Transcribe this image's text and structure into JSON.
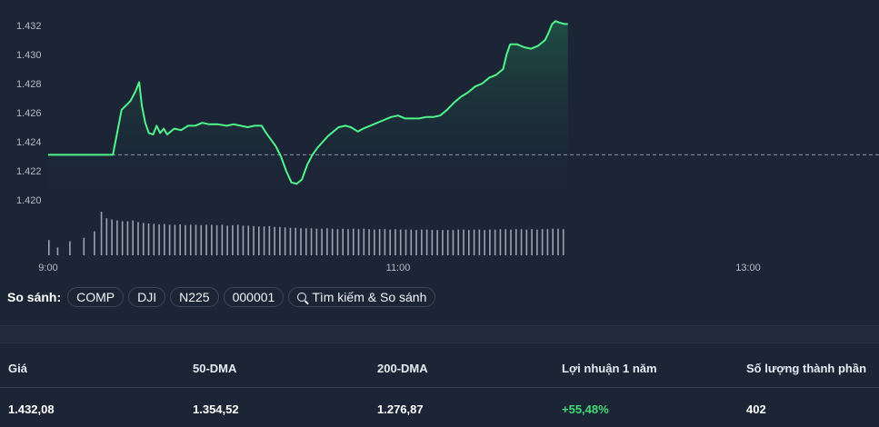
{
  "chart_data": {
    "type": "area",
    "y_ticks": [
      "1.432",
      "1.430",
      "1.428",
      "1.426",
      "1.424",
      "1.422",
      "1.420"
    ],
    "x_ticks": [
      "9:00",
      "11:00",
      "13:00"
    ],
    "ylim": [
      1.4195,
      1.4328
    ],
    "x_range_hours": [
      9,
      13
    ],
    "previous_close": 1.4231,
    "grid": false,
    "colors": {
      "line": "#4ff58b",
      "reference": "#8a93a3",
      "volume": "#9aa3b0",
      "area_top": "#1f5c48"
    },
    "price_series": [
      [
        9.0,
        1.4231
      ],
      [
        9.37,
        1.4231
      ],
      [
        9.42,
        1.4262
      ],
      [
        9.47,
        1.4268
      ],
      [
        9.5,
        1.4275
      ],
      [
        9.52,
        1.4281
      ],
      [
        9.535,
        1.4265
      ],
      [
        9.555,
        1.4253
      ],
      [
        9.575,
        1.4246
      ],
      [
        9.6,
        1.4245
      ],
      [
        9.62,
        1.4251
      ],
      [
        9.64,
        1.4246
      ],
      [
        9.66,
        1.4249
      ],
      [
        9.68,
        1.4245
      ],
      [
        9.7,
        1.4247
      ],
      [
        9.72,
        1.4249
      ],
      [
        9.76,
        1.4248
      ],
      [
        9.8,
        1.4251
      ],
      [
        9.84,
        1.4251
      ],
      [
        9.88,
        1.4253
      ],
      [
        9.92,
        1.4252
      ],
      [
        9.97,
        1.4252
      ],
      [
        10.02,
        1.4251
      ],
      [
        10.06,
        1.4252
      ],
      [
        10.1,
        1.4251
      ],
      [
        10.14,
        1.425
      ],
      [
        10.18,
        1.4251
      ],
      [
        10.22,
        1.4251
      ],
      [
        10.24,
        1.4247
      ],
      [
        10.27,
        1.4242
      ],
      [
        10.3,
        1.4237
      ],
      [
        10.33,
        1.423
      ],
      [
        10.36,
        1.422
      ],
      [
        10.39,
        1.4212
      ],
      [
        10.42,
        1.4211
      ],
      [
        10.45,
        1.4214
      ],
      [
        10.48,
        1.4224
      ],
      [
        10.51,
        1.4231
      ],
      [
        10.54,
        1.4236
      ],
      [
        10.57,
        1.424
      ],
      [
        10.6,
        1.4244
      ],
      [
        10.63,
        1.4247
      ],
      [
        10.66,
        1.425
      ],
      [
        10.7,
        1.4251
      ],
      [
        10.73,
        1.425
      ],
      [
        10.77,
        1.4247
      ],
      [
        10.8,
        1.4249
      ],
      [
        10.84,
        1.4251
      ],
      [
        10.88,
        1.4253
      ],
      [
        10.92,
        1.4255
      ],
      [
        10.96,
        1.4257
      ],
      [
        11.0,
        1.4258
      ],
      [
        11.04,
        1.4256
      ],
      [
        11.08,
        1.4256
      ],
      [
        11.12,
        1.4256
      ],
      [
        11.16,
        1.4257
      ],
      [
        11.2,
        1.4257
      ],
      [
        11.24,
        1.4258
      ],
      [
        11.28,
        1.4262
      ],
      [
        11.32,
        1.4267
      ],
      [
        11.36,
        1.4271
      ],
      [
        11.4,
        1.4274
      ],
      [
        11.44,
        1.4278
      ],
      [
        11.48,
        1.428
      ],
      [
        11.52,
        1.4284
      ],
      [
        11.56,
        1.4286
      ],
      [
        11.6,
        1.429
      ],
      [
        11.62,
        1.43
      ],
      [
        11.64,
        1.4307
      ],
      [
        11.68,
        1.4307
      ],
      [
        11.72,
        1.4305
      ],
      [
        11.76,
        1.4304
      ],
      [
        11.8,
        1.4306
      ],
      [
        11.84,
        1.431
      ],
      [
        11.86,
        1.4315
      ],
      [
        11.88,
        1.4321
      ],
      [
        11.9,
        1.4323
      ],
      [
        11.92,
        1.4322
      ],
      [
        11.95,
        1.4321
      ],
      [
        11.97,
        1.4321
      ]
    ],
    "volume_bars": [
      [
        9.0,
        0.35
      ],
      [
        9.05,
        0.18
      ],
      [
        9.12,
        0.32
      ],
      [
        9.2,
        0.4
      ],
      [
        9.26,
        0.55
      ],
      [
        9.3,
        1.0
      ],
      [
        9.33,
        0.85
      ],
      [
        9.36,
        0.82
      ],
      [
        9.39,
        0.8
      ],
      [
        9.42,
        0.78
      ],
      [
        9.45,
        0.78
      ],
      [
        9.48,
        0.8
      ],
      [
        9.51,
        0.76
      ],
      [
        9.54,
        0.74
      ],
      [
        9.57,
        0.73
      ],
      [
        9.6,
        0.72
      ],
      [
        9.63,
        0.71
      ],
      [
        9.66,
        0.72
      ],
      [
        9.69,
        0.7
      ],
      [
        9.72,
        0.7
      ],
      [
        9.75,
        0.71
      ],
      [
        9.78,
        0.69
      ],
      [
        9.81,
        0.7
      ],
      [
        9.84,
        0.7
      ],
      [
        9.87,
        0.69
      ],
      [
        9.9,
        0.7
      ],
      [
        9.93,
        0.7
      ],
      [
        9.96,
        0.69
      ],
      [
        9.99,
        0.7
      ],
      [
        10.02,
        0.68
      ],
      [
        10.05,
        0.69
      ],
      [
        10.08,
        0.7
      ],
      [
        10.11,
        0.68
      ],
      [
        10.14,
        0.68
      ],
      [
        10.17,
        0.67
      ],
      [
        10.2,
        0.66
      ],
      [
        10.23,
        0.66
      ],
      [
        10.26,
        0.67
      ],
      [
        10.29,
        0.65
      ],
      [
        10.32,
        0.65
      ],
      [
        10.35,
        0.64
      ],
      [
        10.38,
        0.63
      ],
      [
        10.41,
        0.63
      ],
      [
        10.44,
        0.62
      ],
      [
        10.47,
        0.62
      ],
      [
        10.5,
        0.62
      ],
      [
        10.53,
        0.61
      ],
      [
        10.56,
        0.61
      ],
      [
        10.59,
        0.62
      ],
      [
        10.62,
        0.61
      ],
      [
        10.65,
        0.6
      ],
      [
        10.68,
        0.61
      ],
      [
        10.71,
        0.6
      ],
      [
        10.74,
        0.61
      ],
      [
        10.77,
        0.6
      ],
      [
        10.8,
        0.61
      ],
      [
        10.83,
        0.6
      ],
      [
        10.86,
        0.59
      ],
      [
        10.89,
        0.6
      ],
      [
        10.92,
        0.6
      ],
      [
        10.95,
        0.59
      ],
      [
        10.98,
        0.6
      ],
      [
        11.01,
        0.59
      ],
      [
        11.04,
        0.59
      ],
      [
        11.07,
        0.59
      ],
      [
        11.1,
        0.58
      ],
      [
        11.13,
        0.59
      ],
      [
        11.16,
        0.59
      ],
      [
        11.19,
        0.58
      ],
      [
        11.22,
        0.58
      ],
      [
        11.25,
        0.58
      ],
      [
        11.28,
        0.58
      ],
      [
        11.31,
        0.58
      ],
      [
        11.34,
        0.59
      ],
      [
        11.37,
        0.59
      ],
      [
        11.4,
        0.58
      ],
      [
        11.43,
        0.59
      ],
      [
        11.46,
        0.59
      ],
      [
        11.49,
        0.58
      ],
      [
        11.52,
        0.59
      ],
      [
        11.55,
        0.59
      ],
      [
        11.58,
        0.6
      ],
      [
        11.61,
        0.6
      ],
      [
        11.64,
        0.59
      ],
      [
        11.67,
        0.6
      ],
      [
        11.7,
        0.6
      ],
      [
        11.73,
        0.59
      ],
      [
        11.76,
        0.6
      ],
      [
        11.79,
        0.59
      ],
      [
        11.82,
        0.6
      ],
      [
        11.85,
        0.6
      ],
      [
        11.88,
        0.61
      ],
      [
        11.91,
        0.61
      ],
      [
        11.94,
        0.6
      ]
    ]
  },
  "compare": {
    "label": "So sánh:",
    "chips": [
      "COMP",
      "DJI",
      "N225",
      "000001"
    ],
    "search_label": "Tìm kiếm & So sánh",
    "search_icon": "search-icon"
  },
  "stats": {
    "headers": [
      "Giá",
      "50-DMA",
      "200-DMA",
      "Lợi nhuận 1 năm",
      "Số lượng thành phần"
    ],
    "values": [
      "1.432,08",
      "1.354,52",
      "1.276,87",
      "+55,48%",
      "402"
    ],
    "positive_color": "#3fdc78"
  }
}
